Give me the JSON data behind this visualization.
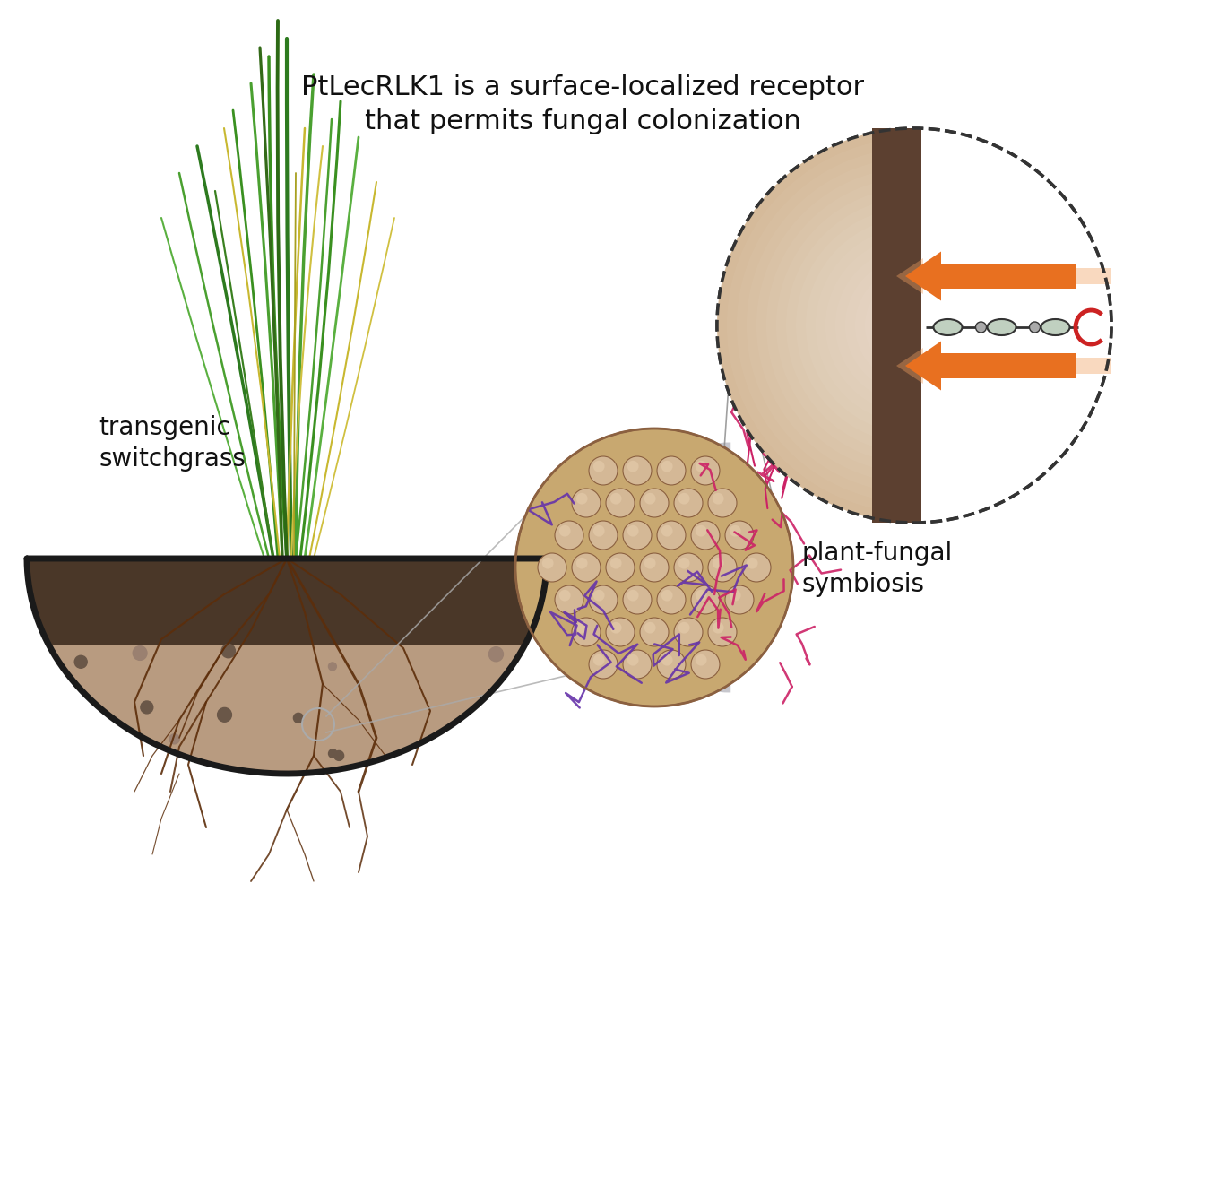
{
  "bg_color": "#ffffff",
  "title_text": "PtLecRLK1 is a surface-localized receptor\nthat permits fungal colonization",
  "title_fontsize": 22,
  "label_transgenic": "transgenic\nswitchgrass",
  "label_symbiosis": "plant-fungal\nsymbiosis",
  "label_fontsize": 20,
  "soil_dark_color": "#4a3728",
  "soil_light_color": "#b89b80",
  "soil_border_color": "#1a1a1a",
  "root_color": "#5c2d0a",
  "grass_green_dark": "#2d7a1f",
  "grass_green_mid": "#4a9e30",
  "grass_yellow": "#c8b830",
  "cell_fill": "#c8a870",
  "cell_border": "#8b6040",
  "fungus_purple": "#6633aa",
  "fungus_pink": "#cc2266",
  "wall_color": "#5c4030",
  "receptor_color": "#c0d0c0",
  "receptor_border": "#333333",
  "kinase_color": "#cc2222",
  "arrow_orange": "#e87020",
  "zoom_bg": "#d4b896",
  "zoom_circle_bg": "#c8a870"
}
